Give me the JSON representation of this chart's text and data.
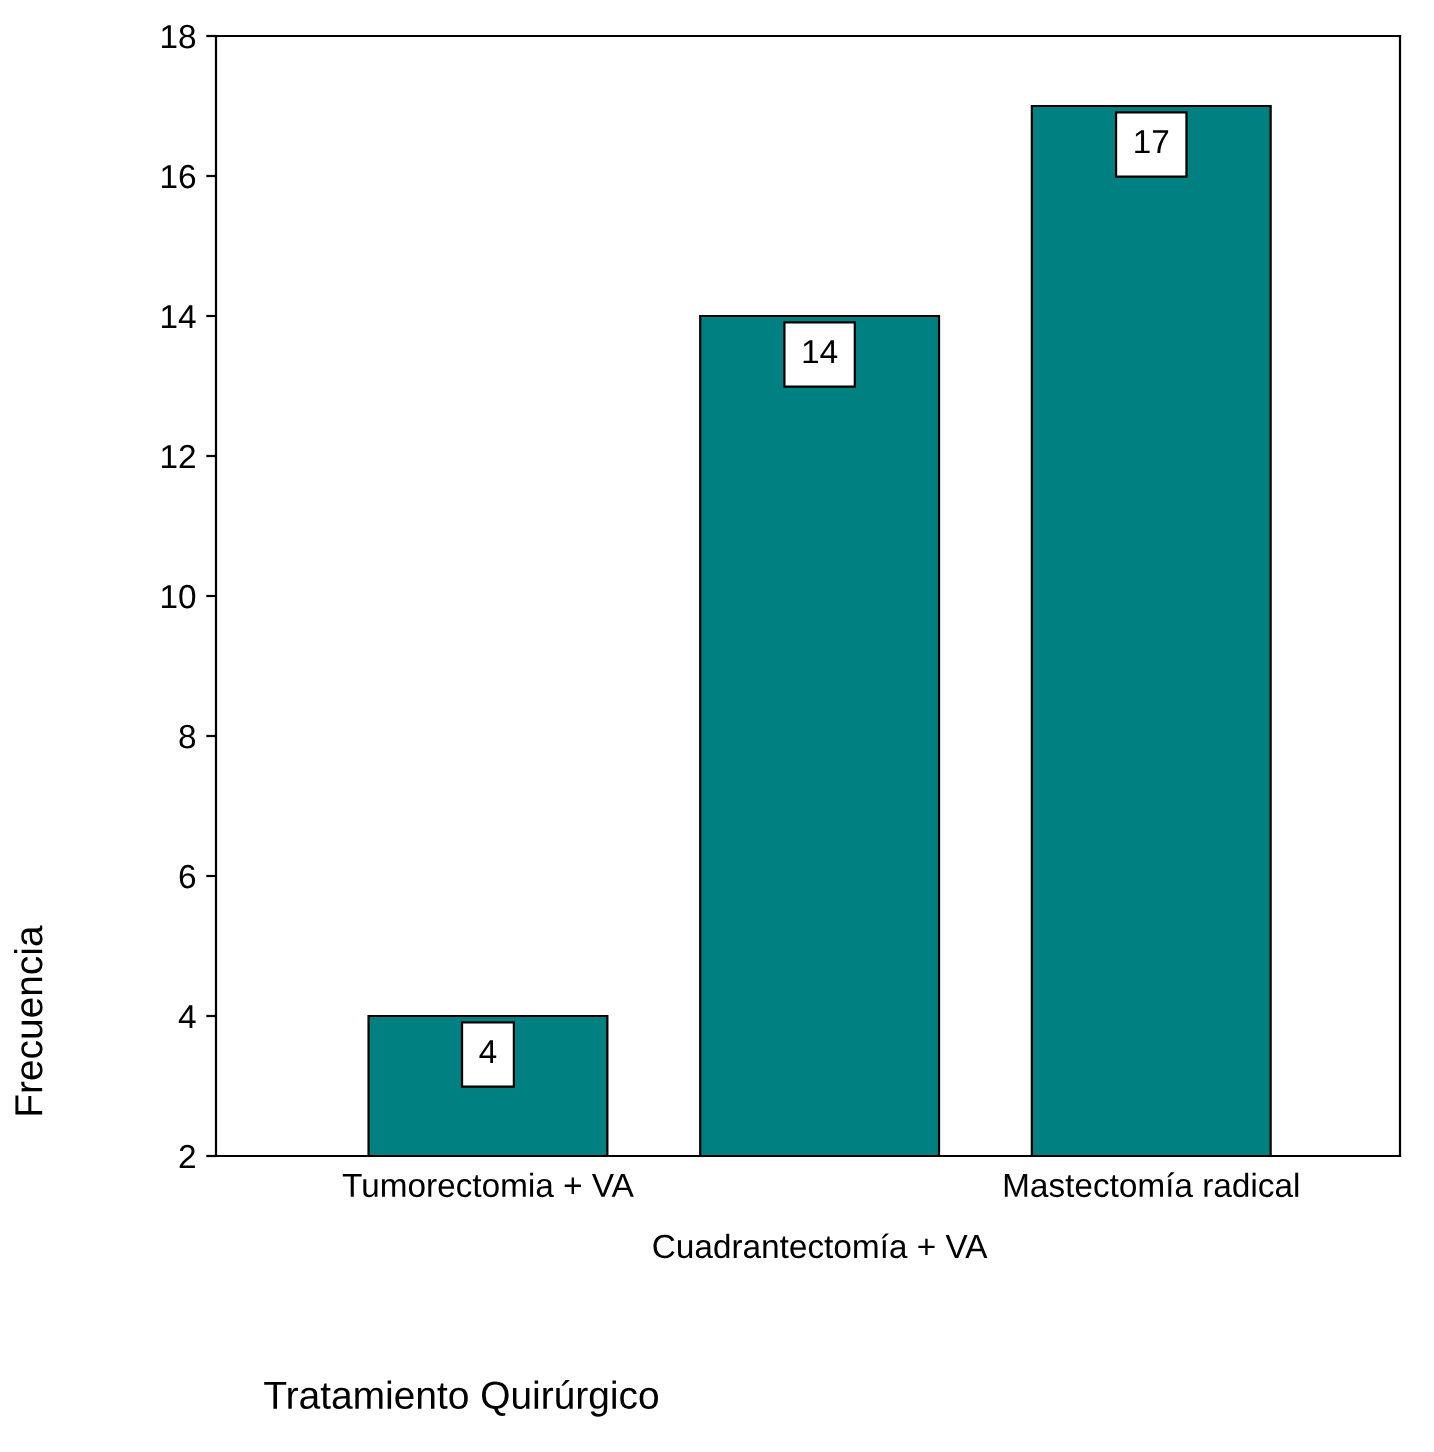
{
  "chart_data": {
    "type": "bar",
    "categories": [
      "Tumorectomia + VA",
      "Cuadrantectomía + VA",
      "Mastectomía radical"
    ],
    "values": [
      4,
      14,
      17
    ],
    "color": "#008080",
    "xlabel": "Tratamiento Quirúrgico",
    "ylabel": "Frecuencia",
    "ylim": [
      2,
      18
    ],
    "yticks": [
      2,
      4,
      6,
      8,
      10,
      12,
      14,
      16,
      18
    ],
    "data_labels": true,
    "grid": false,
    "legend": false
  }
}
